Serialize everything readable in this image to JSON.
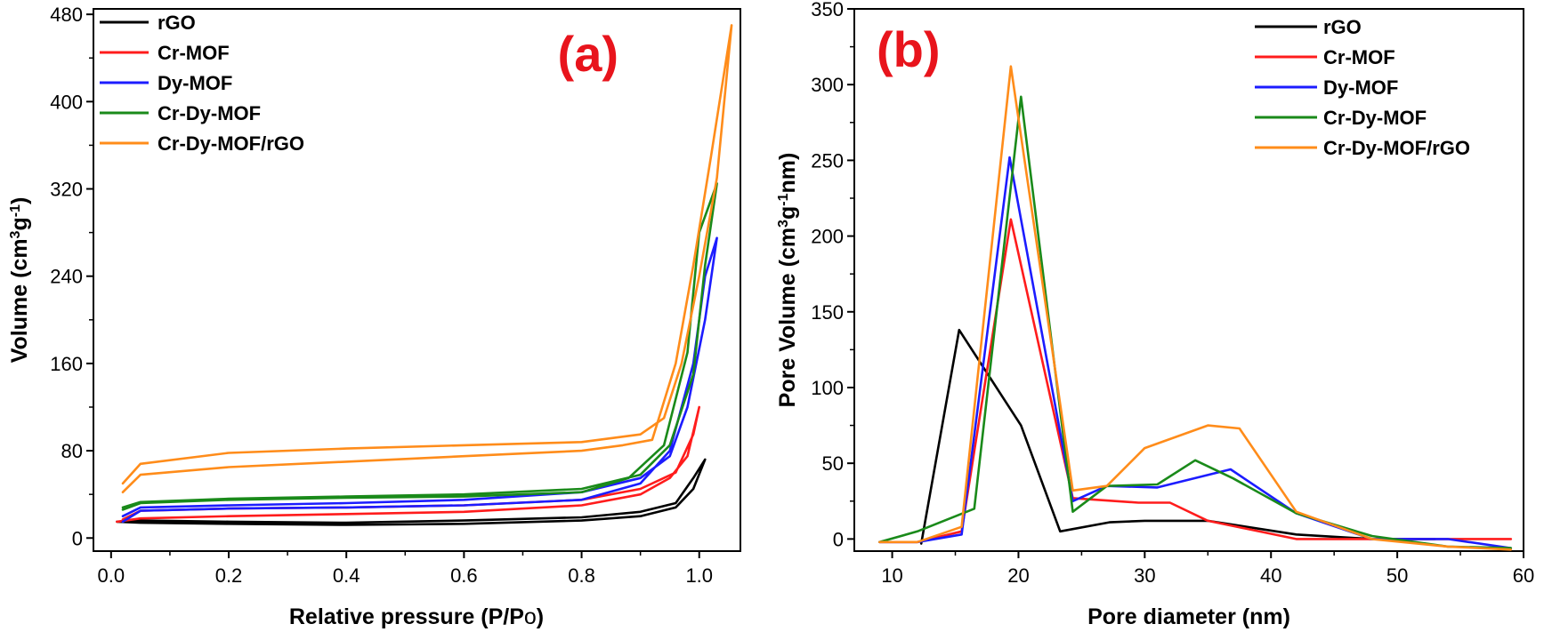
{
  "colors": {
    "rGO": "#000000",
    "Cr-MOF": "#ff1c1c",
    "Dy-MOF": "#1c1cff",
    "Cr-Dy-MOF": "#1a8a1a",
    "Cr-Dy-MOF/rGO": "#ff8c1a"
  },
  "chart_data": [
    {
      "type": "line",
      "panel_label": "(a)",
      "xlabel": "Relative pressure (P/Po)",
      "ylabel": "Volume (cm3g-1)",
      "xlim": [
        -0.03,
        1.07
      ],
      "ylim": [
        -12,
        485
      ],
      "xticks": [
        0.0,
        0.2,
        0.4,
        0.6,
        0.8,
        1.0
      ],
      "xtick_labels": [
        "0.0",
        "0.2",
        "0.4",
        "0.6",
        "0.8",
        "1.0"
      ],
      "yticks": [
        0,
        80,
        160,
        240,
        320,
        400,
        480
      ],
      "ytick_labels": [
        "0",
        "80",
        "160",
        "240",
        "320",
        "400",
        "480"
      ],
      "legend_position": "top-left",
      "series": [
        {
          "name": "rGO",
          "x": [
            0.01,
            0.05,
            0.2,
            0.4,
            0.6,
            0.8,
            0.9,
            0.96,
            0.99,
            1.01,
            0.99,
            0.96,
            0.9,
            0.8,
            0.6,
            0.4,
            0.2,
            0.05,
            0.02
          ],
          "y": [
            15,
            14,
            13,
            12,
            13,
            16,
            20,
            28,
            45,
            72,
            55,
            32,
            24,
            19,
            16,
            14,
            15,
            16,
            15
          ]
        },
        {
          "name": "Cr-MOF",
          "x": [
            0.01,
            0.05,
            0.2,
            0.4,
            0.6,
            0.8,
            0.9,
            0.95,
            0.98,
            1.0,
            0.99,
            0.96,
            0.9,
            0.8,
            0.6,
            0.4,
            0.2,
            0.05,
            0.02
          ],
          "y": [
            15,
            18,
            20,
            22,
            24,
            30,
            40,
            55,
            75,
            120,
            95,
            60,
            45,
            35,
            30,
            28,
            27,
            25,
            17
          ]
        },
        {
          "name": "Dy-MOF",
          "x": [
            0.02,
            0.05,
            0.2,
            0.4,
            0.6,
            0.8,
            0.9,
            0.95,
            0.99,
            1.01,
            1.03,
            1.01,
            0.98,
            0.95,
            0.9,
            0.8,
            0.6,
            0.4,
            0.2,
            0.05,
            0.02
          ],
          "y": [
            15,
            25,
            27,
            28,
            30,
            35,
            50,
            80,
            160,
            240,
            275,
            200,
            120,
            75,
            55,
            42,
            35,
            32,
            30,
            28,
            20
          ]
        },
        {
          "name": "Cr-Dy-MOF",
          "x": [
            0.02,
            0.05,
            0.2,
            0.4,
            0.6,
            0.8,
            0.88,
            0.94,
            0.98,
            1.0,
            1.03,
            1.01,
            0.99,
            0.95,
            0.9,
            0.8,
            0.6,
            0.4,
            0.2,
            0.05,
            0.02
          ],
          "y": [
            26,
            32,
            35,
            37,
            38,
            42,
            55,
            85,
            170,
            280,
            325,
            250,
            150,
            85,
            58,
            45,
            40,
            38,
            36,
            33,
            28
          ]
        },
        {
          "name": "Cr-Dy-MOF/rGO",
          "x": [
            0.02,
            0.05,
            0.2,
            0.4,
            0.6,
            0.8,
            0.87,
            0.92,
            0.96,
            0.99,
            1.02,
            1.055,
            1.03,
            1.0,
            0.97,
            0.94,
            0.9,
            0.8,
            0.6,
            0.4,
            0.2,
            0.05,
            0.02
          ],
          "y": [
            42,
            58,
            65,
            70,
            75,
            80,
            85,
            90,
            160,
            250,
            350,
            470,
            330,
            240,
            160,
            110,
            95,
            88,
            85,
            82,
            78,
            68,
            50
          ]
        }
      ]
    },
    {
      "type": "line",
      "panel_label": "(b)",
      "xlabel": "Pore diameter (nm)",
      "ylabel": "Pore Volume (cm3g-1nm)",
      "xlim": [
        7,
        60
      ],
      "ylim": [
        -8,
        350
      ],
      "xticks": [
        10,
        20,
        30,
        40,
        50,
        60
      ],
      "xtick_labels": [
        "10",
        "20",
        "30",
        "40",
        "50",
        "60"
      ],
      "yticks": [
        0,
        50,
        100,
        150,
        200,
        250,
        300,
        350
      ],
      "ytick_labels": [
        "0",
        "50",
        "100",
        "150",
        "200",
        "250",
        "300",
        "350"
      ],
      "legend_position": "top-right",
      "series": [
        {
          "name": "rGO",
          "x": [
            12.3,
            15.3,
            20.2,
            23.3,
            27.2,
            30,
            35,
            42,
            48,
            53
          ],
          "y": [
            -3,
            138,
            75,
            5,
            11,
            12,
            12,
            3,
            0,
            0
          ]
        },
        {
          "name": "Cr-MOF",
          "x": [
            9,
            12,
            15.5,
            19.4,
            24.3,
            29.5,
            32,
            35,
            42,
            48,
            59
          ],
          "y": [
            -2,
            -2,
            5,
            211,
            27,
            24,
            24,
            12,
            0,
            0,
            0
          ]
        },
        {
          "name": "Dy-MOF",
          "x": [
            9,
            12,
            15.5,
            19.3,
            24.3,
            27,
            31,
            36.8,
            42,
            48,
            54,
            59
          ],
          "y": [
            -2,
            -2,
            3,
            252,
            25,
            35,
            34,
            46,
            17,
            0,
            0,
            -6
          ]
        },
        {
          "name": "Cr-Dy-MOF",
          "x": [
            9,
            12,
            16.5,
            20.2,
            24.3,
            27,
            31,
            34,
            37,
            42,
            48,
            54,
            59
          ],
          "y": [
            -2,
            5,
            20,
            292,
            18,
            35,
            36,
            52,
            40,
            17,
            2,
            -5,
            -6
          ]
        },
        {
          "name": "Cr-Dy-MOF/rGO",
          "x": [
            9,
            12,
            15.5,
            19.4,
            24.3,
            27,
            30,
            35,
            37.5,
            42,
            48,
            54,
            59
          ],
          "y": [
            -2,
            -2,
            8,
            312,
            32,
            35,
            60,
            75,
            73,
            18,
            0,
            -5,
            -7
          ]
        }
      ]
    }
  ]
}
